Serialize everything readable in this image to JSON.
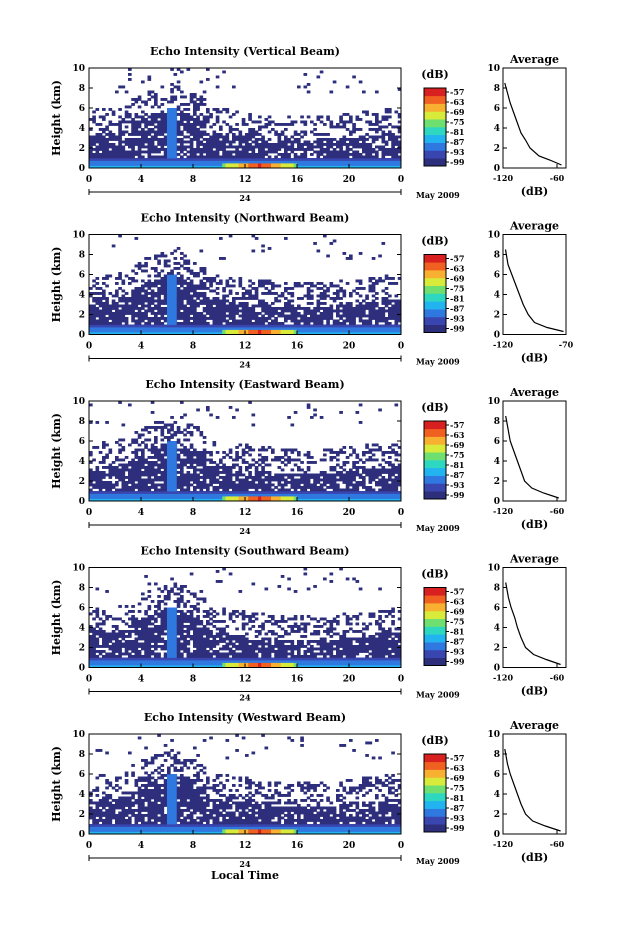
{
  "figure": {
    "xlabel_bottom": "Local Time",
    "date_label": "May 2009",
    "day_label": "24",
    "average_title": "Average",
    "colorbar_unit": "(dB)",
    "average_xlabel": "(dB)"
  },
  "chart_data": [
    {
      "type": "heatmap",
      "title": "Echo Intensity (Vertical Beam)",
      "ylabel": "Height (km)",
      "x_ticks": [
        "0",
        "4",
        "8",
        "12",
        "16",
        "20",
        "0"
      ],
      "xlim": [
        0,
        24
      ],
      "y_ticks": [
        "0",
        "2",
        "4",
        "6",
        "8",
        "10"
      ],
      "ylim": [
        0,
        10
      ],
      "colorbar_ticks": [
        "-57",
        "-63",
        "-69",
        "-75",
        "-81",
        "-87",
        "-93",
        "-99"
      ],
      "average": {
        "x_ticks": [
          "-120",
          "-60"
        ],
        "xlim": [
          -120,
          -50
        ],
        "ylim": [
          0,
          10
        ],
        "profile": [
          [
            -55,
            0.3
          ],
          [
            -68,
            0.8
          ],
          [
            -80,
            1.2
          ],
          [
            -90,
            2
          ],
          [
            -95,
            2.8
          ],
          [
            -100,
            3.5
          ],
          [
            -104,
            4.5
          ],
          [
            -108,
            5.5
          ],
          [
            -112,
            6.5
          ],
          [
            -115,
            7.5
          ],
          [
            -118,
            8.5
          ]
        ]
      }
    },
    {
      "type": "heatmap",
      "title": "Echo Intensity (Northward Beam)",
      "ylabel": "Height (km)",
      "x_ticks": [
        "0",
        "4",
        "8",
        "12",
        "16",
        "20",
        "0"
      ],
      "xlim": [
        0,
        24
      ],
      "y_ticks": [
        "0",
        "2",
        "4",
        "6",
        "8",
        "10"
      ],
      "ylim": [
        0,
        10
      ],
      "colorbar_ticks": [
        "-57",
        "-63",
        "-69",
        "-75",
        "-81",
        "-87",
        "-93",
        "-99"
      ],
      "average": {
        "x_ticks": [
          "-120",
          "-70"
        ],
        "xlim": [
          -120,
          -70
        ],
        "ylim": [
          0,
          10
        ],
        "profile": [
          [
            -72,
            0.3
          ],
          [
            -85,
            0.7
          ],
          [
            -95,
            1.2
          ],
          [
            -100,
            2
          ],
          [
            -104,
            3
          ],
          [
            -107,
            4
          ],
          [
            -110,
            5
          ],
          [
            -113,
            6
          ],
          [
            -116,
            7
          ],
          [
            -118,
            8.5
          ]
        ]
      }
    },
    {
      "type": "heatmap",
      "title": "Echo Intensity (Eastward Beam)",
      "ylabel": "Height (km)",
      "x_ticks": [
        "0",
        "4",
        "8",
        "12",
        "16",
        "20",
        "0"
      ],
      "xlim": [
        0,
        24
      ],
      "y_ticks": [
        "0",
        "2",
        "4",
        "6",
        "8",
        "10"
      ],
      "ylim": [
        0,
        10
      ],
      "colorbar_ticks": [
        "-57",
        "-63",
        "-69",
        "-75",
        "-81",
        "-87",
        "-93",
        "-99"
      ],
      "average": {
        "x_ticks": [
          "-120",
          "-60"
        ],
        "xlim": [
          -120,
          -50
        ],
        "ylim": [
          0,
          10
        ],
        "profile": [
          [
            -58,
            0.3
          ],
          [
            -75,
            0.8
          ],
          [
            -88,
            1.3
          ],
          [
            -96,
            2
          ],
          [
            -100,
            3
          ],
          [
            -104,
            4
          ],
          [
            -108,
            5
          ],
          [
            -112,
            6
          ],
          [
            -114,
            7
          ],
          [
            -117,
            8.5
          ]
        ]
      }
    },
    {
      "type": "heatmap",
      "title": "Echo Intensity (Southward Beam)",
      "ylabel": "Height (km)",
      "x_ticks": [
        "0",
        "4",
        "8",
        "12",
        "16",
        "20",
        "0"
      ],
      "xlim": [
        0,
        24
      ],
      "y_ticks": [
        "0",
        "2",
        "4",
        "6",
        "8",
        "10"
      ],
      "ylim": [
        0,
        10
      ],
      "colorbar_ticks": [
        "-57",
        "-63",
        "-69",
        "-75",
        "-81",
        "-87",
        "-93",
        "-99"
      ],
      "average": {
        "x_ticks": [
          "-120",
          "-60"
        ],
        "xlim": [
          -120,
          -50
        ],
        "ylim": [
          0,
          10
        ],
        "profile": [
          [
            -56,
            0.3
          ],
          [
            -72,
            0.8
          ],
          [
            -86,
            1.3
          ],
          [
            -95,
            2
          ],
          [
            -100,
            3
          ],
          [
            -104,
            4
          ],
          [
            -107,
            5
          ],
          [
            -111,
            6
          ],
          [
            -114,
            7
          ],
          [
            -117,
            8.5
          ]
        ]
      }
    },
    {
      "type": "heatmap",
      "title": "Echo Intensity (Westward Beam)",
      "ylabel": "Height (km)",
      "x_ticks": [
        "0",
        "4",
        "8",
        "12",
        "16",
        "20",
        "0"
      ],
      "xlim": [
        0,
        24
      ],
      "y_ticks": [
        "0",
        "2",
        "4",
        "6",
        "8",
        "10"
      ],
      "ylim": [
        0,
        10
      ],
      "colorbar_ticks": [
        "-57",
        "-63",
        "-69",
        "-75",
        "-81",
        "-87",
        "-93",
        "-99"
      ],
      "average": {
        "x_ticks": [
          "-120",
          "-60"
        ],
        "xlim": [
          -120,
          -50
        ],
        "ylim": [
          0,
          10
        ],
        "profile": [
          [
            -56,
            0.3
          ],
          [
            -73,
            0.8
          ],
          [
            -87,
            1.3
          ],
          [
            -95,
            2
          ],
          [
            -100,
            3
          ],
          [
            -104,
            4
          ],
          [
            -108,
            5
          ],
          [
            -112,
            6
          ],
          [
            -115,
            7
          ],
          [
            -118,
            8.5
          ]
        ]
      }
    }
  ]
}
